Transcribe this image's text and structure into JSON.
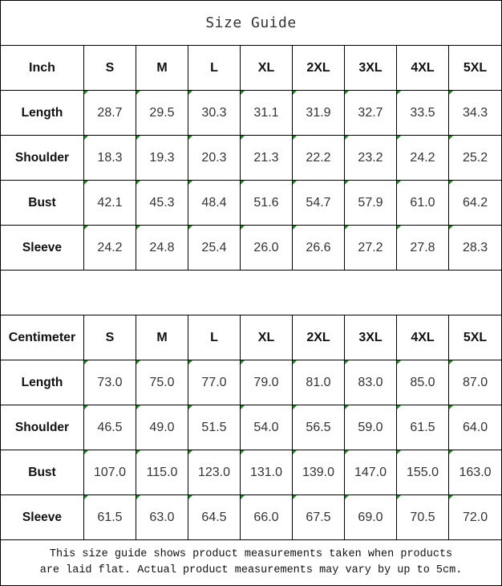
{
  "title": "Size Guide",
  "sizes": [
    "S",
    "M",
    "L",
    "XL",
    "2XL",
    "3XL",
    "4XL",
    "5XL"
  ],
  "tables": [
    {
      "unit": "Inch",
      "rows": [
        {
          "label": "Length",
          "values": [
            "28.7",
            "29.5",
            "30.3",
            "31.1",
            "31.9",
            "32.7",
            "33.5",
            "34.3"
          ]
        },
        {
          "label": "Shoulder",
          "values": [
            "18.3",
            "19.3",
            "20.3",
            "21.3",
            "22.2",
            "23.2",
            "24.2",
            "25.2"
          ]
        },
        {
          "label": "Bust",
          "values": [
            "42.1",
            "45.3",
            "48.4",
            "51.6",
            "54.7",
            "57.9",
            "61.0",
            "64.2"
          ]
        },
        {
          "label": "Sleeve",
          "values": [
            "24.2",
            "24.8",
            "25.4",
            "26.0",
            "26.6",
            "27.2",
            "27.8",
            "28.3"
          ]
        }
      ]
    },
    {
      "unit": "Centimeter",
      "rows": [
        {
          "label": "Length",
          "values": [
            "73.0",
            "75.0",
            "77.0",
            "79.0",
            "81.0",
            "83.0",
            "85.0",
            "87.0"
          ]
        },
        {
          "label": "Shoulder",
          "values": [
            "46.5",
            "49.0",
            "51.5",
            "54.0",
            "56.5",
            "59.0",
            "61.5",
            "64.0"
          ]
        },
        {
          "label": "Bust",
          "values": [
            "107.0",
            "115.0",
            "123.0",
            "131.0",
            "139.0",
            "147.0",
            "155.0",
            "163.0"
          ]
        },
        {
          "label": "Sleeve",
          "values": [
            "61.5",
            "63.0",
            "64.5",
            "66.0",
            "67.5",
            "69.0",
            "70.5",
            "72.0"
          ]
        }
      ]
    }
  ],
  "note": {
    "line1": "This size guide shows product measurements taken when products",
    "line2": "are laid flat. Actual product measurements may vary by up to 5cm."
  },
  "colors": {
    "corner_marker": "#1a8a1a",
    "border": "#000000"
  }
}
